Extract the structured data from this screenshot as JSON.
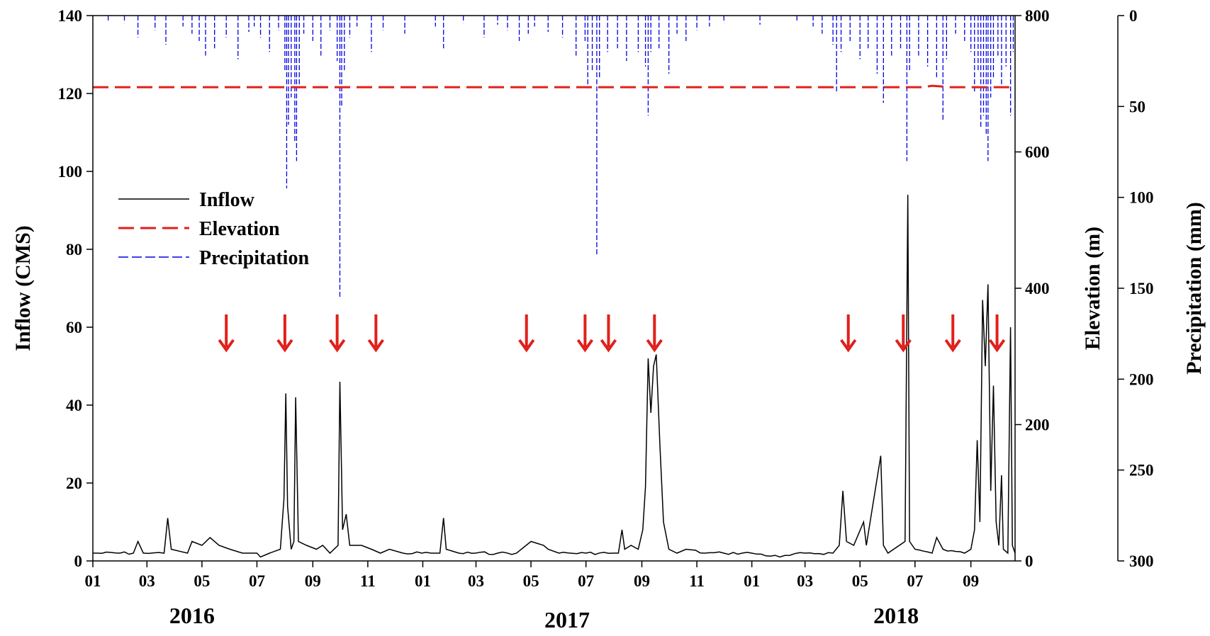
{
  "chart_data": {
    "type": "line",
    "x_axis": {
      "month_ticks": [
        "01",
        "03",
        "05",
        "07",
        "09",
        "11",
        "01",
        "03",
        "05",
        "07",
        "09",
        "11",
        "01",
        "03",
        "05",
        "07",
        "09"
      ],
      "year_labels": [
        "2016",
        "2017",
        "2018"
      ],
      "range": [
        "2016-01-01",
        "2018-10-20"
      ]
    },
    "y_left": {
      "label": "Inflow (CMS)",
      "range": [
        0,
        140
      ],
      "ticks": [
        "0",
        "20",
        "40",
        "60",
        "80",
        "100",
        "120",
        "140"
      ]
    },
    "y_right": {
      "label": "Elevation (m)",
      "range": [
        0,
        800
      ],
      "ticks": [
        "0",
        "200",
        "400",
        "600",
        "800"
      ]
    },
    "y_right2": {
      "label": "Precipitation (mm)",
      "range": [
        0,
        300
      ],
      "inverted": true,
      "ticks": [
        "0",
        "50",
        "100",
        "150",
        "200",
        "250",
        "300"
      ]
    },
    "legend": {
      "position": "upper-left",
      "items": [
        {
          "label": "Inflow",
          "color": "#000000",
          "style": "solid"
        },
        {
          "label": "Elevation",
          "color": "#e0201b",
          "style": "dashed"
        },
        {
          "label": "Precipitation",
          "color": "#0000e6",
          "style": "dashed"
        }
      ]
    },
    "series": [
      {
        "name": "Inflow",
        "axis": "left",
        "baseline": 2,
        "points": [
          [
            "2016-01-01",
            2
          ],
          [
            "2016-02-15",
            2
          ],
          [
            "2016-02-20",
            5
          ],
          [
            "2016-02-26",
            2
          ],
          [
            "2016-03-20",
            2
          ],
          [
            "2016-03-24",
            11
          ],
          [
            "2016-03-28",
            3
          ],
          [
            "2016-04-15",
            2
          ],
          [
            "2016-04-20",
            5
          ],
          [
            "2016-05-01",
            4
          ],
          [
            "2016-05-10",
            6
          ],
          [
            "2016-05-20",
            4
          ],
          [
            "2016-06-01",
            3
          ],
          [
            "2016-06-15",
            2
          ],
          [
            "2016-07-01",
            2
          ],
          [
            "2016-07-05",
            1
          ],
          [
            "2016-07-15",
            2
          ],
          [
            "2016-07-27",
            3
          ],
          [
            "2016-07-31",
            16
          ],
          [
            "2016-08-02",
            43
          ],
          [
            "2016-08-04",
            14
          ],
          [
            "2016-08-08",
            3
          ],
          [
            "2016-08-11",
            5
          ],
          [
            "2016-08-13",
            42
          ],
          [
            "2016-08-16",
            5
          ],
          [
            "2016-08-25",
            4
          ],
          [
            "2016-09-05",
            3
          ],
          [
            "2016-09-12",
            4
          ],
          [
            "2016-09-20",
            2
          ],
          [
            "2016-09-29",
            4
          ],
          [
            "2016-10-01",
            46
          ],
          [
            "2016-10-04",
            8
          ],
          [
            "2016-10-08",
            12
          ],
          [
            "2016-10-12",
            4
          ],
          [
            "2016-10-25",
            4
          ],
          [
            "2016-11-05",
            3
          ],
          [
            "2016-11-15",
            2
          ],
          [
            "2016-11-25",
            3
          ],
          [
            "2016-12-10",
            2
          ],
          [
            "2017-01-10",
            2
          ],
          [
            "2017-01-20",
            2
          ],
          [
            "2017-01-24",
            11
          ],
          [
            "2017-01-27",
            3
          ],
          [
            "2017-02-10",
            2
          ],
          [
            "2017-03-25",
            2
          ],
          [
            "2017-04-15",
            2
          ],
          [
            "2017-05-01",
            5
          ],
          [
            "2017-05-15",
            4
          ],
          [
            "2017-05-20",
            3
          ],
          [
            "2017-06-01",
            2
          ],
          [
            "2017-07-01",
            2
          ],
          [
            "2017-07-31",
            2
          ],
          [
            "2017-08-06",
            2
          ],
          [
            "2017-08-10",
            8
          ],
          [
            "2017-08-13",
            3
          ],
          [
            "2017-08-20",
            4
          ],
          [
            "2017-08-28",
            3
          ],
          [
            "2017-09-02",
            8
          ],
          [
            "2017-09-05",
            19
          ],
          [
            "2017-09-08",
            52
          ],
          [
            "2017-09-11",
            38
          ],
          [
            "2017-09-14",
            50
          ],
          [
            "2017-09-17",
            53
          ],
          [
            "2017-09-21",
            30
          ],
          [
            "2017-09-25",
            10
          ],
          [
            "2017-10-01",
            3
          ],
          [
            "2017-10-10",
            2
          ],
          [
            "2017-10-20",
            3
          ],
          [
            "2017-11-10",
            2
          ],
          [
            "2017-12-01",
            2
          ],
          [
            "2018-01-01",
            2
          ],
          [
            "2018-02-01",
            1
          ],
          [
            "2018-03-01",
            2
          ],
          [
            "2018-04-01",
            2
          ],
          [
            "2018-04-08",
            4
          ],
          [
            "2018-04-12",
            18
          ],
          [
            "2018-04-16",
            5
          ],
          [
            "2018-04-24",
            4
          ],
          [
            "2018-05-05",
            10
          ],
          [
            "2018-05-08",
            4
          ],
          [
            "2018-05-24",
            27
          ],
          [
            "2018-05-27",
            4
          ],
          [
            "2018-06-01",
            2
          ],
          [
            "2018-06-20",
            5
          ],
          [
            "2018-06-23",
            94
          ],
          [
            "2018-06-25",
            5
          ],
          [
            "2018-07-01",
            3
          ],
          [
            "2018-07-20",
            2
          ],
          [
            "2018-07-25",
            6
          ],
          [
            "2018-08-01",
            3
          ],
          [
            "2018-08-25",
            2
          ],
          [
            "2018-09-01",
            3
          ],
          [
            "2018-09-05",
            8
          ],
          [
            "2018-09-08",
            31
          ],
          [
            "2018-09-11",
            10
          ],
          [
            "2018-09-14",
            67
          ],
          [
            "2018-09-17",
            50
          ],
          [
            "2018-09-20",
            71
          ],
          [
            "2018-09-23",
            18
          ],
          [
            "2018-09-26",
            45
          ],
          [
            "2018-09-29",
            10
          ],
          [
            "2018-10-02",
            4
          ],
          [
            "2018-10-05",
            22
          ],
          [
            "2018-10-07",
            3
          ],
          [
            "2018-10-12",
            2
          ],
          [
            "2018-10-15",
            60
          ],
          [
            "2018-10-17",
            4
          ],
          [
            "2018-10-20",
            2
          ]
        ]
      },
      {
        "name": "Elevation",
        "axis": "right",
        "points": [
          [
            "2016-01-01",
            695
          ],
          [
            "2018-07-10",
            695
          ],
          [
            "2018-07-20",
            697
          ],
          [
            "2018-08-10",
            695
          ],
          [
            "2018-10-20",
            695
          ]
        ]
      },
      {
        "name": "Precipitation",
        "axis": "right2",
        "bars": [
          [
            "2016-01-18",
            3
          ],
          [
            "2016-02-05",
            4
          ],
          [
            "2016-02-20",
            12
          ],
          [
            "2016-03-10",
            8
          ],
          [
            "2016-03-22",
            16
          ],
          [
            "2016-04-10",
            6
          ],
          [
            "2016-04-20",
            10
          ],
          [
            "2016-04-28",
            14
          ],
          [
            "2016-05-05",
            22
          ],
          [
            "2016-05-15",
            18
          ],
          [
            "2016-05-28",
            12
          ],
          [
            "2016-06-10",
            24
          ],
          [
            "2016-06-22",
            9
          ],
          [
            "2016-06-28",
            6
          ],
          [
            "2016-07-05",
            12
          ],
          [
            "2016-07-15",
            20
          ],
          [
            "2016-07-25",
            8
          ],
          [
            "2016-08-01",
            30
          ],
          [
            "2016-08-03",
            95
          ],
          [
            "2016-08-05",
            60
          ],
          [
            "2016-08-08",
            45
          ],
          [
            "2016-08-12",
            70
          ],
          [
            "2016-08-14",
            80
          ],
          [
            "2016-08-17",
            40
          ],
          [
            "2016-08-22",
            10
          ],
          [
            "2016-09-01",
            14
          ],
          [
            "2016-09-10",
            22
          ],
          [
            "2016-09-20",
            8
          ],
          [
            "2016-09-28",
            25
          ],
          [
            "2016-10-01",
            155
          ],
          [
            "2016-10-03",
            50
          ],
          [
            "2016-10-06",
            30
          ],
          [
            "2016-10-12",
            12
          ],
          [
            "2016-10-20",
            6
          ],
          [
            "2016-11-05",
            20
          ],
          [
            "2016-11-18",
            8
          ],
          [
            "2016-12-12",
            10
          ],
          [
            "2017-01-15",
            6
          ],
          [
            "2017-01-24",
            18
          ],
          [
            "2017-02-15",
            4
          ],
          [
            "2017-03-10",
            12
          ],
          [
            "2017-03-25",
            5
          ],
          [
            "2017-04-05",
            8
          ],
          [
            "2017-04-18",
            14
          ],
          [
            "2017-04-28",
            10
          ],
          [
            "2017-05-05",
            6
          ],
          [
            "2017-05-20",
            9
          ],
          [
            "2017-06-05",
            12
          ],
          [
            "2017-06-20",
            22
          ],
          [
            "2017-06-30",
            14
          ],
          [
            "2017-07-03",
            40
          ],
          [
            "2017-07-08",
            30
          ],
          [
            "2017-07-13",
            132
          ],
          [
            "2017-07-16",
            35
          ],
          [
            "2017-07-25",
            20
          ],
          [
            "2017-08-05",
            18
          ],
          [
            "2017-08-15",
            25
          ],
          [
            "2017-08-28",
            20
          ],
          [
            "2017-09-05",
            28
          ],
          [
            "2017-09-08",
            55
          ],
          [
            "2017-09-11",
            20
          ],
          [
            "2017-09-20",
            18
          ],
          [
            "2017-10-01",
            32
          ],
          [
            "2017-10-10",
            10
          ],
          [
            "2017-10-20",
            14
          ],
          [
            "2017-11-01",
            8
          ],
          [
            "2017-11-15",
            6
          ],
          [
            "2017-12-01",
            4
          ],
          [
            "2018-01-10",
            5
          ],
          [
            "2018-02-20",
            3
          ],
          [
            "2018-03-10",
            6
          ],
          [
            "2018-03-20",
            10
          ],
          [
            "2018-04-01",
            16
          ],
          [
            "2018-04-05",
            42
          ],
          [
            "2018-04-10",
            20
          ],
          [
            "2018-04-20",
            14
          ],
          [
            "2018-05-01",
            24
          ],
          [
            "2018-05-10",
            18
          ],
          [
            "2018-05-20",
            32
          ],
          [
            "2018-05-27",
            48
          ],
          [
            "2018-06-05",
            22
          ],
          [
            "2018-06-15",
            18
          ],
          [
            "2018-06-22",
            80
          ],
          [
            "2018-06-25",
            30
          ],
          [
            "2018-07-05",
            22
          ],
          [
            "2018-07-15",
            28
          ],
          [
            "2018-07-25",
            35
          ],
          [
            "2018-08-01",
            58
          ],
          [
            "2018-08-05",
            24
          ],
          [
            "2018-08-15",
            10
          ],
          [
            "2018-08-25",
            14
          ],
          [
            "2018-09-01",
            20
          ],
          [
            "2018-09-05",
            42
          ],
          [
            "2018-09-09",
            30
          ],
          [
            "2018-09-12",
            62
          ],
          [
            "2018-09-15",
            55
          ],
          [
            "2018-09-18",
            65
          ],
          [
            "2018-09-20",
            80
          ],
          [
            "2018-09-23",
            45
          ],
          [
            "2018-09-26",
            35
          ],
          [
            "2018-10-01",
            22
          ],
          [
            "2018-10-05",
            38
          ],
          [
            "2018-10-10",
            28
          ],
          [
            "2018-10-15",
            55
          ],
          [
            "2018-10-18",
            20
          ]
        ]
      }
    ],
    "annotations": {
      "type": "down-arrow",
      "color": "#e0201b",
      "at_inflow_level": 60,
      "dates": [
        "2016-05-28",
        "2016-08-01",
        "2016-09-28",
        "2016-11-10",
        "2017-04-26",
        "2017-06-30",
        "2017-07-26",
        "2017-09-15",
        "2018-04-18",
        "2018-06-18",
        "2018-08-12",
        "2018-09-30"
      ]
    }
  }
}
